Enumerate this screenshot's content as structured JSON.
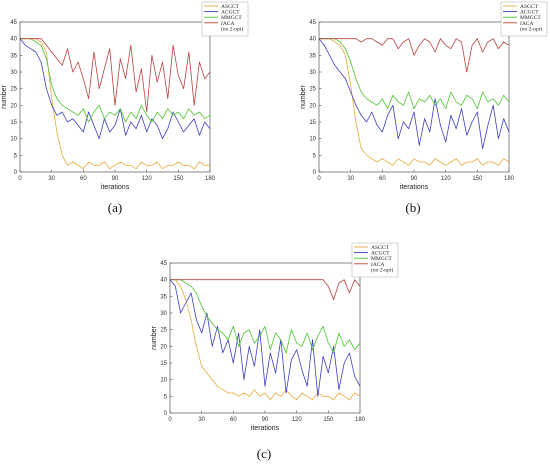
{
  "chart_data": [
    {
      "type": "line",
      "caption": "(a)",
      "xlabel": "iterations",
      "ylabel": "number",
      "xlim": [
        0,
        180
      ],
      "ylim": [
        0,
        45
      ],
      "xticks": [
        "0",
        "30",
        "60",
        "90",
        "120",
        "150",
        "180"
      ],
      "yticks": [
        "0",
        "5",
        "10",
        "15",
        "20",
        "25",
        "30",
        "35",
        "40",
        "45"
      ],
      "grid": false,
      "legend_placement": "top-right",
      "x": [
        0,
        5,
        10,
        15,
        20,
        25,
        30,
        35,
        40,
        45,
        50,
        55,
        60,
        65,
        70,
        75,
        80,
        85,
        90,
        95,
        100,
        105,
        110,
        115,
        120,
        125,
        130,
        135,
        140,
        145,
        150,
        155,
        160,
        165,
        170,
        175,
        180
      ],
      "series": [
        {
          "name": "ASGCT",
          "color": "#e6a93b",
          "values": [
            40,
            40,
            40,
            40,
            39,
            36,
            22,
            12,
            5,
            2,
            3,
            2,
            1,
            3,
            2,
            2,
            3,
            1,
            2,
            3,
            2,
            2,
            1,
            3,
            2,
            2,
            3,
            1,
            2,
            2,
            3,
            2,
            2,
            1,
            3,
            2,
            2
          ]
        },
        {
          "name": "ACGCT",
          "color": "#3b3fc2",
          "values": [
            40,
            38,
            37,
            36,
            33,
            25,
            20,
            17,
            18,
            15,
            16,
            14,
            12,
            18,
            14,
            10,
            16,
            12,
            14,
            19,
            11,
            15,
            13,
            17,
            12,
            16,
            14,
            10,
            13,
            18,
            15,
            12,
            14,
            16,
            11,
            15,
            13
          ]
        },
        {
          "name": "MMGCT",
          "color": "#4cc52e",
          "values": [
            40,
            40,
            40,
            39,
            38,
            34,
            26,
            22,
            20,
            19,
            18,
            17,
            19,
            15,
            18,
            20,
            16,
            18,
            17,
            19,
            15,
            18,
            16,
            20,
            17,
            15,
            18,
            16,
            19,
            17,
            18,
            16,
            19,
            17,
            18,
            16,
            17
          ]
        },
        {
          "name": "IACA",
          "label2": "(no 2-opt)",
          "color": "#b9433f",
          "values": [
            40,
            40,
            40,
            40,
            40,
            38,
            36,
            34,
            32,
            37,
            30,
            33,
            28,
            22,
            36,
            25,
            31,
            37,
            20,
            34,
            28,
            38,
            24,
            31,
            18,
            35,
            27,
            33,
            22,
            38,
            29,
            25,
            36,
            20,
            33,
            28,
            30
          ]
        }
      ]
    },
    {
      "type": "line",
      "caption": "(b)",
      "xlabel": "iterations",
      "ylabel": "number",
      "xlim": [
        0,
        180
      ],
      "ylim": [
        0,
        45
      ],
      "xticks": [
        "0",
        "30",
        "60",
        "90",
        "120",
        "150",
        "180"
      ],
      "yticks": [
        "0",
        "5",
        "10",
        "15",
        "20",
        "25",
        "30",
        "35",
        "40",
        "45"
      ],
      "grid": false,
      "legend_placement": "top-right",
      "x": [
        0,
        5,
        10,
        15,
        20,
        25,
        30,
        35,
        40,
        45,
        50,
        55,
        60,
        65,
        70,
        75,
        80,
        85,
        90,
        95,
        100,
        105,
        110,
        115,
        120,
        125,
        130,
        135,
        140,
        145,
        150,
        155,
        160,
        165,
        170,
        175,
        180
      ],
      "series": [
        {
          "name": "ASGCT",
          "color": "#e6a93b",
          "values": [
            40,
            40,
            40,
            39,
            38,
            35,
            26,
            15,
            7,
            5,
            4,
            3,
            4,
            3,
            2,
            4,
            3,
            2,
            4,
            3,
            3,
            2,
            4,
            3,
            2,
            3,
            4,
            2,
            3,
            3,
            4,
            2,
            3,
            3,
            2,
            4,
            3
          ]
        },
        {
          "name": "ACGCT",
          "color": "#3b3fc2",
          "values": [
            40,
            38,
            35,
            32,
            30,
            28,
            24,
            20,
            17,
            15,
            18,
            14,
            12,
            17,
            20,
            10,
            15,
            13,
            18,
            8,
            16,
            12,
            22,
            14,
            9,
            17,
            13,
            19,
            11,
            15,
            18,
            7,
            14,
            20,
            10,
            16,
            12
          ]
        },
        {
          "name": "MMGCT",
          "color": "#4cc52e",
          "values": [
            40,
            40,
            40,
            40,
            39,
            37,
            33,
            28,
            24,
            22,
            21,
            20,
            22,
            19,
            23,
            21,
            20,
            24,
            19,
            22,
            21,
            23,
            20,
            22,
            19,
            24,
            21,
            20,
            23,
            22,
            19,
            24,
            21,
            22,
            20,
            23,
            21
          ]
        },
        {
          "name": "IACA",
          "label2": "(no 2-opt)",
          "color": "#b9433f",
          "values": [
            40,
            40,
            40,
            40,
            40,
            40,
            40,
            40,
            39,
            40,
            40,
            39,
            38,
            40,
            40,
            37,
            39,
            40,
            35,
            38,
            40,
            39,
            36,
            40,
            38,
            37,
            40,
            39,
            30,
            38,
            40,
            36,
            39,
            40,
            37,
            39,
            38
          ]
        }
      ]
    },
    {
      "type": "line",
      "caption": "(c)",
      "xlabel": "iterations",
      "ylabel": "number",
      "xlim": [
        0,
        180
      ],
      "ylim": [
        0,
        45
      ],
      "xticks": [
        "0",
        "30",
        "60",
        "90",
        "120",
        "150",
        "180"
      ],
      "yticks": [
        "0",
        "5",
        "10",
        "15",
        "20",
        "25",
        "30",
        "35",
        "40",
        "45"
      ],
      "grid": false,
      "legend_placement": "top-right",
      "x": [
        0,
        5,
        10,
        15,
        20,
        25,
        30,
        35,
        40,
        45,
        50,
        55,
        60,
        65,
        70,
        75,
        80,
        85,
        90,
        95,
        100,
        105,
        110,
        115,
        120,
        125,
        130,
        135,
        140,
        145,
        150,
        155,
        160,
        165,
        170,
        175,
        180
      ],
      "series": [
        {
          "name": "ASGCT",
          "color": "#e6a93b",
          "values": [
            40,
            40,
            38,
            34,
            28,
            20,
            14,
            12,
            10,
            8,
            7,
            6,
            6,
            5,
            6,
            5,
            7,
            5,
            6,
            4,
            6,
            5,
            7,
            5,
            4,
            6,
            5,
            4,
            6,
            5,
            5,
            4,
            6,
            5,
            4,
            6,
            5
          ]
        },
        {
          "name": "ACGCT",
          "color": "#3b3fc2",
          "values": [
            40,
            38,
            30,
            33,
            36,
            28,
            24,
            30,
            20,
            26,
            18,
            22,
            15,
            24,
            10,
            20,
            14,
            25,
            8,
            18,
            12,
            22,
            6,
            16,
            19,
            13,
            8,
            22,
            5,
            17,
            12,
            20,
            7,
            15,
            18,
            11,
            8
          ]
        },
        {
          "name": "MMGCT",
          "color": "#4cc52e",
          "values": [
            40,
            40,
            40,
            39,
            38,
            36,
            32,
            29,
            27,
            25,
            24,
            22,
            26,
            20,
            24,
            25,
            21,
            23,
            26,
            19,
            24,
            22,
            18,
            25,
            21,
            20,
            24,
            19,
            23,
            26,
            21,
            18,
            24,
            20,
            22,
            19,
            21
          ]
        },
        {
          "name": "IACA",
          "label2": "(no 2-opt)",
          "color": "#b9433f",
          "values": [
            40,
            40,
            40,
            40,
            40,
            40,
            40,
            40,
            40,
            40,
            40,
            40,
            40,
            40,
            40,
            40,
            40,
            40,
            40,
            40,
            40,
            40,
            40,
            40,
            40,
            40,
            40,
            40,
            40,
            40,
            38,
            34,
            39,
            40,
            36,
            40,
            38
          ]
        }
      ]
    }
  ]
}
